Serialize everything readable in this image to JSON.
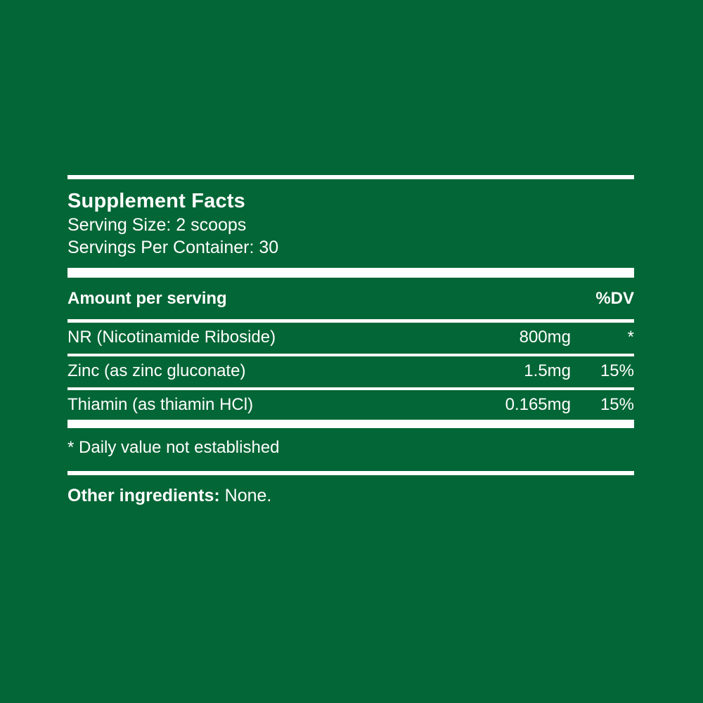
{
  "colors": {
    "background": "#036636",
    "text": "#FFFFFF",
    "rule": "#FFFFFF"
  },
  "label": {
    "title": "Supplement Facts",
    "serving_size": "Serving Size: 2 scoops",
    "servings_per_container": "Servings Per Container: 30",
    "header": {
      "amount_label": "Amount per serving",
      "dv_label": "%DV"
    },
    "rows": [
      {
        "name": "NR (Nicotinamide Riboside)",
        "amount": "800mg",
        "dv": "*"
      },
      {
        "name": "Zinc (as zinc gluconate)",
        "amount": "1.5mg",
        "dv": "15%"
      },
      {
        "name": "Thiamin (as thiamin HCl)",
        "amount": "0.165mg",
        "dv": "15%"
      }
    ],
    "footnote": "* Daily value not established",
    "other_ingredients": {
      "label": "Other ingredients:",
      "value": "None."
    }
  }
}
